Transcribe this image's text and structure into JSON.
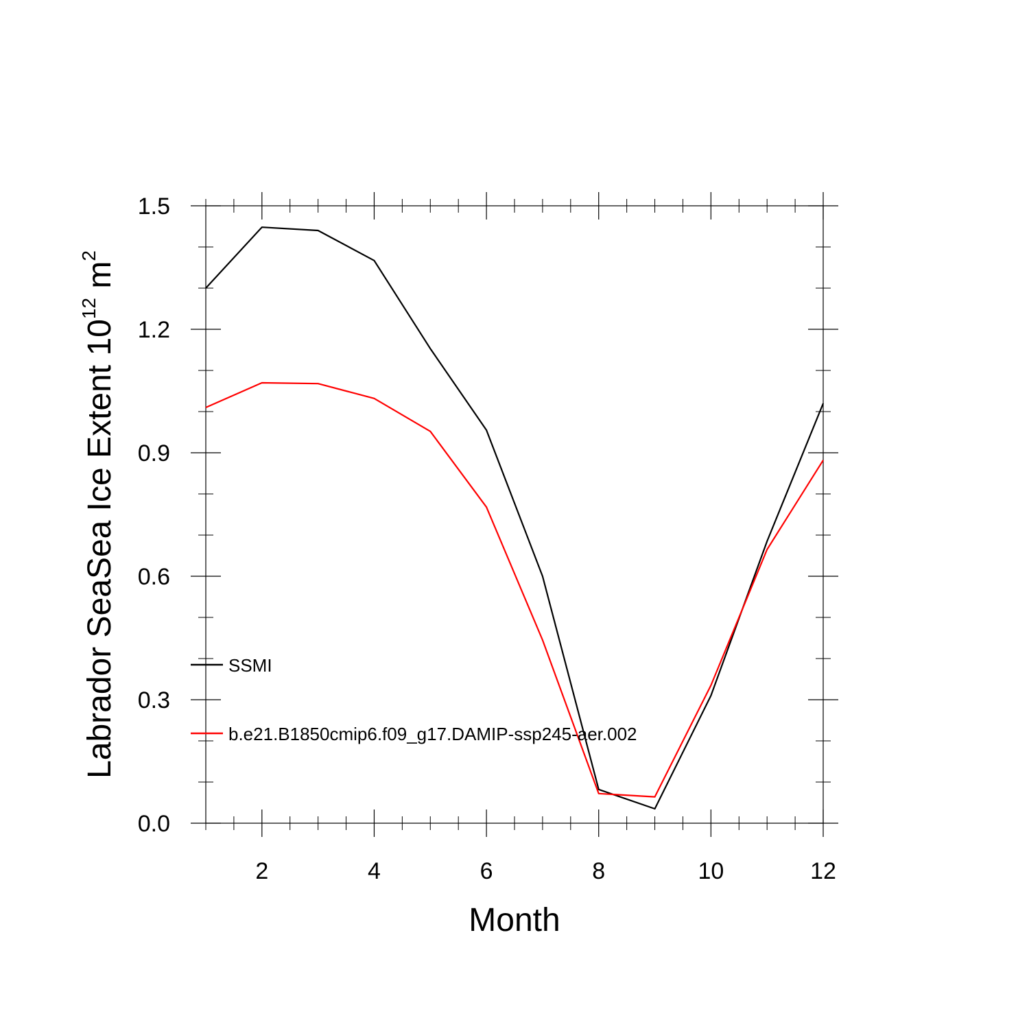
{
  "chart_data": {
    "type": "line",
    "xlabel": "Month",
    "ylabel": {
      "main": "Labrador SeaSea Ice Extent 10",
      "exponent": "12",
      "unit_suffix": " m",
      "unit_exponent": "2"
    },
    "xlim": [
      1,
      12
    ],
    "ylim": [
      0,
      1.5
    ],
    "x_ticks": [
      2,
      4,
      6,
      8,
      10,
      12
    ],
    "x_tick_labels": [
      "2",
      "4",
      "6",
      "8",
      "10",
      "12"
    ],
    "y_ticks": [
      0,
      0.3,
      0.6,
      0.9,
      1.2,
      1.5
    ],
    "y_tick_labels": [
      "0.0",
      "0.3",
      "0.6",
      "0.9",
      "1.2",
      "1.5"
    ],
    "grid": false,
    "legend_position": "lower-left",
    "x": [
      1,
      2,
      3,
      4,
      5,
      6,
      7,
      8,
      9,
      10,
      11,
      12
    ],
    "series": [
      {
        "name": "SSMI",
        "color": "#000000",
        "values": [
          1.3,
          1.448,
          1.44,
          1.367,
          1.153,
          0.955,
          0.6,
          0.082,
          0.035,
          0.31,
          0.685,
          1.02
        ]
      },
      {
        "name": "b.e21.B1850cmip6.f09_g17.DAMIP-ssp245-aer.002",
        "color": "#ff0000",
        "values": [
          1.01,
          1.07,
          1.068,
          1.032,
          0.952,
          0.768,
          0.445,
          0.072,
          0.064,
          0.335,
          0.665,
          0.882
        ]
      }
    ]
  }
}
